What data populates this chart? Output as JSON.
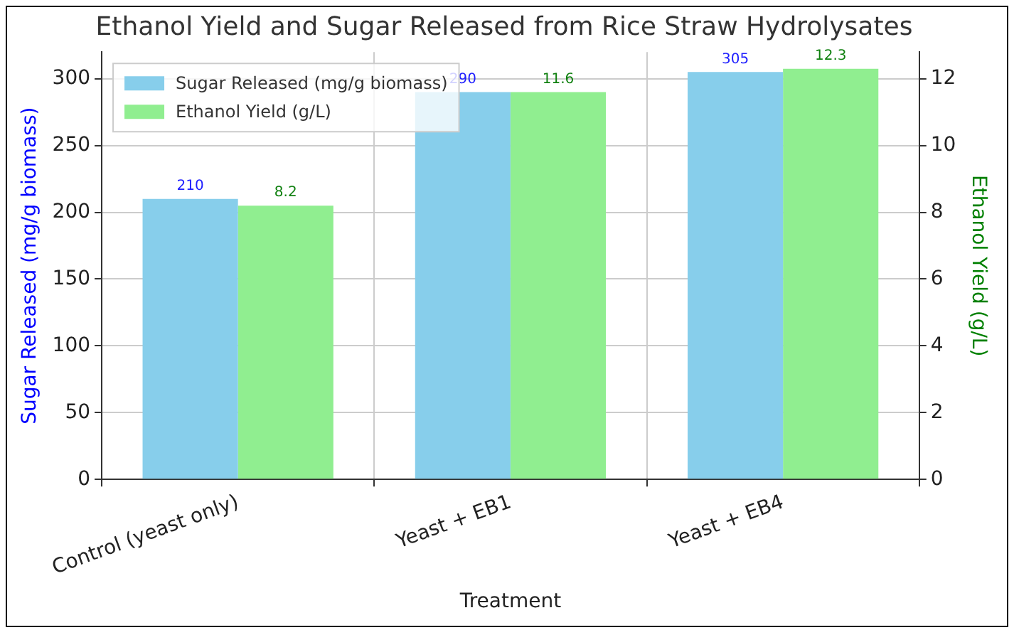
{
  "chart_data": {
    "type": "bar",
    "title": "Ethanol Yield and Sugar Released from Rice Straw Hydrolysates",
    "xlabel": "Treatment",
    "ylabel": "Sugar Released (mg/g biomass)",
    "y2label": "Ethanol Yield (g/L)",
    "categories": [
      "Control (yeast only)",
      "Yeast + EB1",
      "Yeast + EB4"
    ],
    "series": [
      {
        "name": "Sugar Released (mg/g biomass)",
        "color": "#87ceeb",
        "values": [
          210,
          290,
          305
        ]
      },
      {
        "name": "Ethanol Yield (g/L)",
        "color": "#90ee90",
        "values": [
          8.2,
          11.6,
          12.3
        ],
        "axis": "y2"
      }
    ],
    "ylim": [
      0,
      320
    ],
    "yticks": [
      0,
      50,
      100,
      150,
      200,
      250,
      300
    ],
    "y2lim": [
      0,
      12.8
    ],
    "y2ticks": [
      0,
      2,
      4,
      6,
      8,
      10,
      12
    ],
    "grid": true,
    "legend": "top left",
    "data_labels": true
  }
}
